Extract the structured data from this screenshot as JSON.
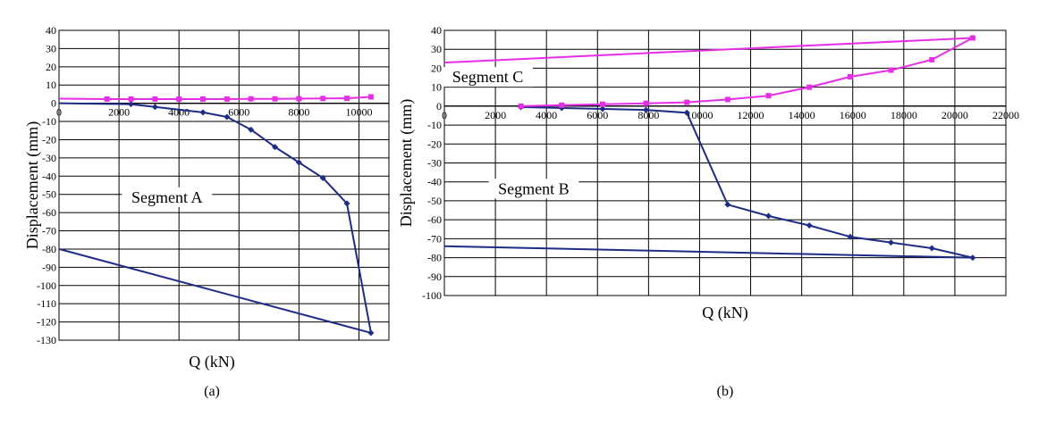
{
  "chart_data": [
    {
      "type": "line",
      "caption": "(a)",
      "xlabel": "Q (kN)",
      "ylabel": "Displacement (mm)",
      "xlim": [
        0,
        11000
      ],
      "ylim": [
        -130,
        40
      ],
      "x_ticks": [
        0,
        2000,
        4000,
        6000,
        8000,
        10000
      ],
      "y_ticks": [
        40,
        30,
        20,
        10,
        0,
        -10,
        -20,
        -30,
        -40,
        -50,
        -60,
        -70,
        -80,
        -90,
        -100,
        -110,
        -120,
        -130
      ],
      "x_tick_labels": [
        "0",
        "2000",
        "4000",
        "6000",
        "8000",
        "10000"
      ],
      "y_tick_labels": [
        "40",
        "30",
        "20",
        "10",
        "0",
        "-10",
        "-20",
        "-30",
        "-40",
        "-50",
        "-60",
        "-70",
        "-80",
        "-90",
        "-100",
        "-110",
        "-120",
        "-130"
      ],
      "grid": true,
      "annotations": [
        {
          "text": "Segment A",
          "x": 3600,
          "y": -53
        }
      ],
      "series": [
        {
          "color": "#1f2c85",
          "marker": "diamond",
          "x": [
            0,
            2400,
            3200,
            4800,
            5600,
            6400,
            7200,
            8000,
            8800,
            9600,
            10400,
            0
          ],
          "y": [
            0,
            -0.5,
            -2,
            -5,
            -7.5,
            -14.5,
            -24,
            -32.5,
            -41,
            -55,
            -126,
            -80
          ]
        },
        {
          "color": "#e62ee6",
          "marker": "square",
          "x": [
            0,
            1600,
            2400,
            3200,
            4000,
            4800,
            5600,
            6400,
            7200,
            8000,
            8800,
            9600,
            10400
          ],
          "y": [
            2.5,
            2.3,
            2.3,
            2.3,
            2.3,
            2.3,
            2.3,
            2.4,
            2.4,
            2.5,
            2.6,
            2.7,
            3.5
          ]
        }
      ]
    },
    {
      "type": "line",
      "caption": "(b)",
      "xlabel": "Q (kN)",
      "ylabel": "Displacement (mm)",
      "xlim": [
        0,
        22000
      ],
      "ylim": [
        -100,
        40
      ],
      "x_ticks": [
        0,
        2000,
        4000,
        6000,
        8000,
        10000,
        12000,
        14000,
        16000,
        18000,
        20000,
        22000
      ],
      "y_ticks": [
        40,
        30,
        20,
        10,
        0,
        -10,
        -20,
        -30,
        -40,
        -50,
        -60,
        -70,
        -80,
        -90,
        -100
      ],
      "x_tick_labels": [
        "0",
        "2000",
        "4000",
        "6000",
        "8000",
        "10000",
        "12000",
        "14000",
        "16000",
        "18000",
        "20000",
        "22000"
      ],
      "y_tick_labels": [
        "40",
        "30",
        "20",
        "10",
        "0",
        "-10",
        "-20",
        "-30",
        "-40",
        "-50",
        "-60",
        "-70",
        "-80",
        "-90",
        "-100"
      ],
      "grid": true,
      "annotations": [
        {
          "text": "Segment C",
          "x": 1700,
          "y": 14
        },
        {
          "text": "Segment B",
          "x": 3500,
          "y": -45
        }
      ],
      "series": [
        {
          "color": "#1f2c85",
          "marker": "diamond",
          "x": [
            3000,
            4600,
            6200,
            7900,
            9500,
            11100,
            12700,
            14300,
            15900,
            17500,
            19100,
            20700,
            0
          ],
          "y": [
            -0.5,
            -1,
            -1.5,
            -2,
            -3.5,
            -52,
            -58,
            -63,
            -69,
            -72,
            -75,
            -80,
            -74
          ]
        },
        {
          "color": "#e62ee6",
          "marker": "square",
          "x": [
            3000,
            4600,
            6200,
            7900,
            9500,
            11100,
            12700,
            14300,
            15900,
            17500,
            19100,
            20700,
            0
          ],
          "y": [
            0,
            0.5,
            1,
            1.5,
            2,
            3.5,
            5.5,
            10,
            15.5,
            19,
            24.5,
            36,
            23
          ]
        }
      ]
    }
  ]
}
